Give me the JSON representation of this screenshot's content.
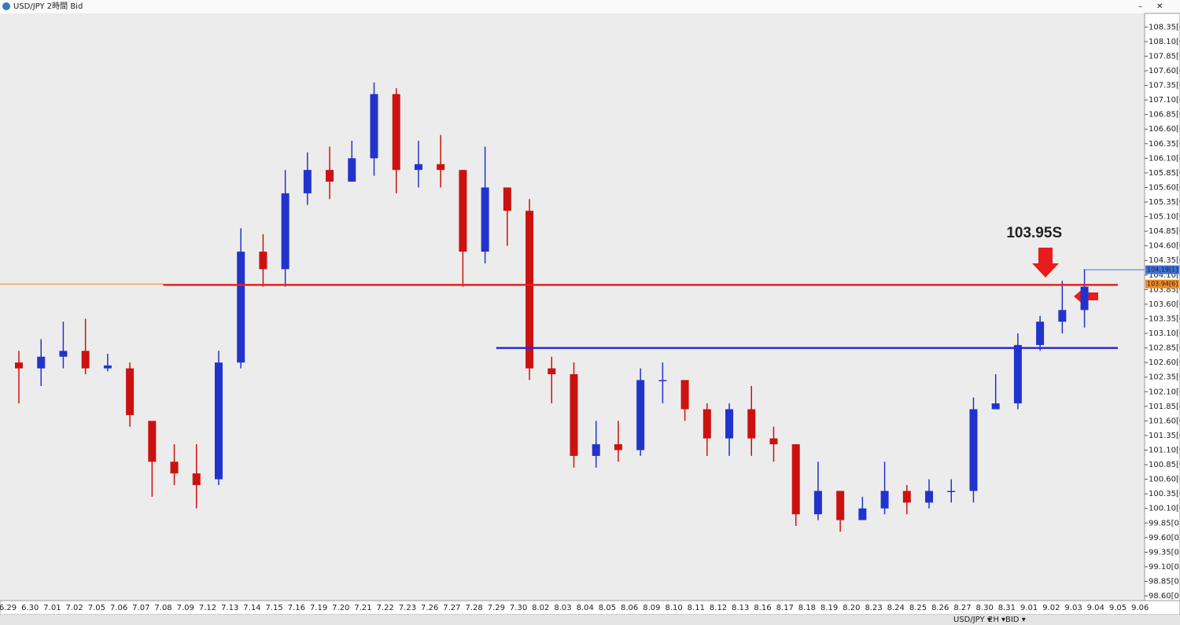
{
  "window_title": "USD/JPY 2時間 Bid",
  "toolbar": {
    "symbol": "USD/JPY ▾",
    "timeframe": "2H ▾",
    "side": "BID ▾"
  },
  "chart_data": {
    "type": "candlestick",
    "categories": [
      "6.29",
      "6.30",
      "7.01",
      "7.02",
      "7.05",
      "7.06",
      "7.07",
      "7.08",
      "7.09",
      "7.12",
      "7.13",
      "7.14",
      "7.15",
      "7.16",
      "7.19",
      "7.20",
      "7.21",
      "7.22",
      "7.23",
      "7.26",
      "7.27",
      "7.28",
      "7.29",
      "7.30",
      "8.02",
      "8.03",
      "8.04",
      "8.05",
      "8.06",
      "8.09",
      "8.10",
      "8.11",
      "8.12",
      "8.13",
      "8.16",
      "8.17",
      "8.18",
      "8.19",
      "8.20",
      "8.23",
      "8.24",
      "8.25",
      "8.26",
      "8.27",
      "8.30",
      "8.31",
      "9.01",
      "9.02",
      "9.03",
      "9.04",
      "9.05",
      "9.06"
    ],
    "open": [
      102.6,
      102.5,
      102.7,
      102.8,
      102.5,
      102.5,
      101.6,
      100.9,
      100.7,
      100.6,
      102.6,
      104.5,
      104.2,
      105.5,
      105.9,
      105.7,
      106.1,
      107.2,
      105.9,
      106.0,
      105.9,
      104.5,
      105.6,
      105.2,
      102.5,
      102.4,
      101.0,
      101.2,
      101.1,
      102.3,
      102.3,
      101.8,
      101.3,
      101.8,
      101.3,
      101.2,
      100.0,
      100.4,
      99.9,
      100.1,
      100.4,
      100.2,
      100.4,
      100.4,
      101.8,
      101.9,
      102.9,
      103.3,
      103.5,
      null,
      null,
      null
    ],
    "high": [
      102.8,
      103.0,
      103.3,
      103.35,
      102.75,
      102.6,
      101.5,
      101.2,
      101.2,
      102.8,
      104.9,
      104.8,
      105.9,
      106.2,
      106.3,
      106.4,
      107.4,
      107.3,
      106.4,
      106.5,
      105.9,
      106.3,
      105.6,
      105.4,
      102.7,
      102.6,
      101.6,
      101.6,
      102.5,
      102.6,
      102.3,
      101.9,
      101.9,
      102.2,
      101.5,
      101.2,
      100.9,
      100.4,
      100.3,
      100.9,
      100.5,
      100.6,
      100.6,
      102.0,
      102.4,
      103.1,
      103.4,
      104.0,
      104.2,
      null,
      null,
      null
    ],
    "low": [
      101.9,
      102.2,
      102.5,
      102.4,
      102.45,
      101.5,
      100.3,
      100.5,
      100.1,
      100.5,
      102.5,
      103.9,
      103.9,
      105.3,
      105.4,
      105.7,
      105.8,
      105.5,
      105.6,
      105.6,
      103.9,
      104.3,
      104.6,
      102.3,
      101.9,
      100.8,
      100.8,
      100.9,
      101.0,
      101.9,
      101.6,
      101.0,
      101.0,
      101.0,
      100.9,
      99.8,
      99.9,
      99.7,
      99.9,
      100.0,
      100.0,
      100.1,
      100.2,
      100.2,
      101.8,
      101.8,
      102.8,
      103.1,
      103.2,
      null,
      null,
      null
    ],
    "close": [
      102.5,
      102.7,
      102.8,
      102.5,
      102.55,
      101.7,
      100.9,
      100.7,
      100.5,
      102.6,
      104.5,
      104.2,
      105.5,
      105.9,
      105.7,
      106.1,
      107.2,
      105.9,
      106.0,
      105.9,
      104.5,
      105.6,
      105.2,
      102.5,
      102.4,
      101.0,
      101.2,
      101.1,
      102.3,
      102.3,
      101.8,
      101.3,
      101.8,
      101.3,
      101.2,
      100.0,
      100.4,
      99.9,
      100.1,
      100.4,
      100.2,
      100.4,
      100.4,
      101.8,
      101.9,
      102.9,
      103.3,
      103.5,
      103.9,
      null,
      null,
      null
    ],
    "up_color": "#2233cc",
    "down_color": "#cc1111",
    "ylim": [
      98.52,
      108.57
    ],
    "yticks": [
      {
        "value": 108.35,
        "label": "108.35[0"
      },
      {
        "value": 108.1,
        "label": "108.10[0"
      },
      {
        "value": 107.85,
        "label": "107.85[0"
      },
      {
        "value": 107.6,
        "label": "107.60[0"
      },
      {
        "value": 107.35,
        "label": "107.35[0"
      },
      {
        "value": 107.1,
        "label": "107.10[0"
      },
      {
        "value": 106.85,
        "label": "106.85[0"
      },
      {
        "value": 106.6,
        "label": "106.60[0"
      },
      {
        "value": 106.35,
        "label": "106.35[0"
      },
      {
        "value": 106.1,
        "label": "106.10[0"
      },
      {
        "value": 105.85,
        "label": "105.85[0"
      },
      {
        "value": 105.6,
        "label": "105.60[0"
      },
      {
        "value": 105.35,
        "label": "105.35[0"
      },
      {
        "value": 105.1,
        "label": "105.10[0"
      },
      {
        "value": 104.85,
        "label": "104.85[0"
      },
      {
        "value": 104.6,
        "label": "104.60[0"
      },
      {
        "value": 104.35,
        "label": "104.35[0"
      },
      {
        "value": 104.1,
        "label": "104.10[0"
      },
      {
        "value": 103.85,
        "label": "103.85[0"
      },
      {
        "value": 103.6,
        "label": "103.60[0"
      },
      {
        "value": 103.35,
        "label": "103.35[0"
      },
      {
        "value": 103.1,
        "label": "103.10[0"
      },
      {
        "value": 102.85,
        "label": "102.85[0"
      },
      {
        "value": 102.6,
        "label": "102.60[0"
      },
      {
        "value": 102.35,
        "label": "102.35[0"
      },
      {
        "value": 102.1,
        "label": "102.10[0"
      },
      {
        "value": 101.85,
        "label": "101.85[0"
      },
      {
        "value": 101.6,
        "label": "101.60[0"
      },
      {
        "value": 101.35,
        "label": "101.35[0"
      },
      {
        "value": 101.1,
        "label": "101.10[0"
      },
      {
        "value": 100.85,
        "label": "100.85[0"
      },
      {
        "value": 100.6,
        "label": "100.60[0"
      },
      {
        "value": 100.35,
        "label": "100.35[0"
      },
      {
        "value": 100.1,
        "label": "100.10[0"
      },
      {
        "value": 99.85,
        "label": "99.85[0]"
      },
      {
        "value": 99.6,
        "label": "99.60[0]"
      },
      {
        "value": 99.35,
        "label": "99.35[0]"
      },
      {
        "value": 99.1,
        "label": "99.10[0]"
      },
      {
        "value": 98.85,
        "label": "98.85[0]"
      },
      {
        "value": 98.6,
        "label": "98.60[0"
      }
    ],
    "levels": [
      {
        "value": 103.93,
        "color": "#e32222",
        "from": "7.08",
        "to": "9.05"
      },
      {
        "value": 102.85,
        "color": "#2b2bd0",
        "from": "7.29",
        "to": "9.05"
      }
    ],
    "price_tags": [
      {
        "value": 104.19,
        "label": "104.19[1]",
        "color": "#3f6fd8"
      },
      {
        "value": 103.946,
        "label": "103.94[6]",
        "color": "#f08a24"
      }
    ],
    "annotation": "103.95S"
  }
}
